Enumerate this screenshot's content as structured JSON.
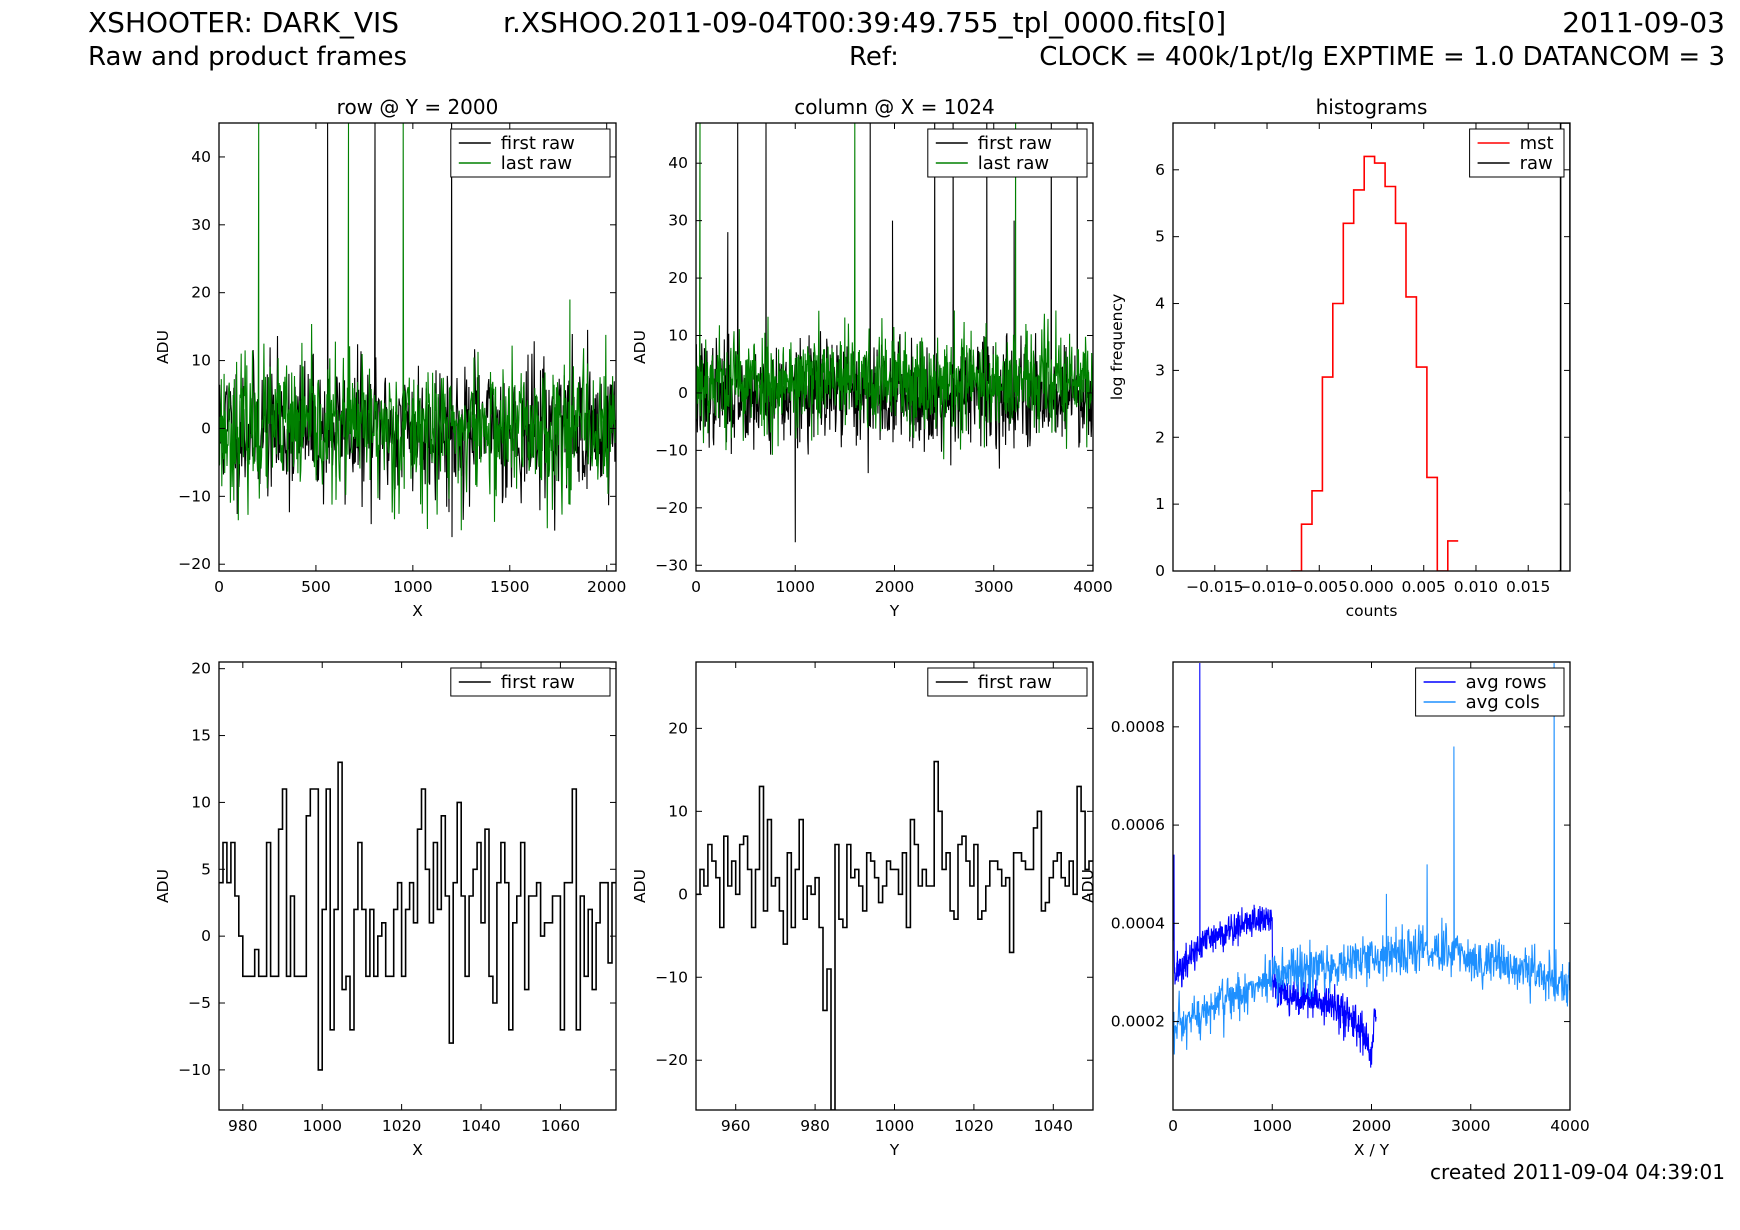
{
  "header": {
    "instrument": "XSHOOTER: DARK_VIS",
    "filename": "r.XSHOO.2011-09-04T00:39:49.755_tpl_0000.fits[0]",
    "date": "2011-09-03",
    "subtitle": "Raw and product frames",
    "ref": "Ref:",
    "params": "CLOCK = 400k/1pt/lg EXPTIME = 1.0 DATANCOM = 3"
  },
  "footer": {
    "created": "created 2011-09-04 04:39:01"
  },
  "colors": {
    "first_raw": "#000000",
    "last_raw": "#008000",
    "mst": "#ff0000",
    "raw": "#000000",
    "avg_rows": "#0000ff",
    "avg_cols": "#1e90ff"
  },
  "chart_data": [
    {
      "id": "row_full",
      "type": "line",
      "title": "row @ Y = 2000",
      "xlabel": "X",
      "ylabel": "ADU",
      "xlim": [
        0,
        2048
      ],
      "ylim": [
        -21,
        45
      ],
      "xticks": [
        0,
        500,
        1000,
        1500,
        2000
      ],
      "yticks": [
        -20,
        -10,
        0,
        10,
        20,
        30,
        40
      ],
      "legend": "top-right",
      "series": [
        {
          "name": "first raw",
          "color": "#000000",
          "noise": {
            "n": 700,
            "mean": 0,
            "sd": 5,
            "seed": 11
          },
          "spikes": [
            [
              560,
              45
            ],
            [
              805,
              45
            ],
            [
              1200,
              45
            ],
            [
              1202,
              -16
            ]
          ]
        },
        {
          "name": "last raw",
          "color": "#008000",
          "noise": {
            "n": 700,
            "mean": 0,
            "sd": 5,
            "seed": 23
          },
          "spikes": [
            [
              205,
              45
            ],
            [
              668,
              45
            ],
            [
              950,
              45
            ],
            [
              1810,
              19
            ],
            [
              1250,
              -15
            ]
          ]
        }
      ]
    },
    {
      "id": "col_full",
      "type": "line",
      "title": "column @ X = 1024",
      "xlabel": "Y",
      "ylabel": "ADU",
      "xlim": [
        0,
        4000
      ],
      "ylim": [
        -31,
        47
      ],
      "xticks": [
        0,
        1000,
        2000,
        3000,
        4000
      ],
      "yticks": [
        -30,
        -20,
        -10,
        0,
        10,
        20,
        30,
        40
      ],
      "legend": "top-right",
      "series": [
        {
          "name": "first raw",
          "color": "#000000",
          "noise": {
            "n": 900,
            "mean": 0,
            "sd": 4.5,
            "seed": 37
          },
          "spikes": [
            [
              420,
              47
            ],
            [
              705,
              47
            ],
            [
              1000,
              -26
            ],
            [
              1755,
              47
            ],
            [
              1980,
              30
            ],
            [
              2405,
              47
            ],
            [
              2590,
              47
            ],
            [
              2930,
              47
            ],
            [
              3205,
              30
            ],
            [
              3580,
              47
            ],
            [
              3840,
              47
            ],
            [
              320,
              28
            ]
          ]
        },
        {
          "name": "last raw",
          "color": "#008000",
          "noise": {
            "n": 900,
            "mean": 2,
            "sd": 4.5,
            "seed": 53
          },
          "spikes": [
            [
              40,
              47
            ],
            [
              1600,
              47
            ],
            [
              3220,
              47
            ]
          ]
        }
      ]
    },
    {
      "id": "histograms",
      "type": "line",
      "title": "histograms",
      "xlabel": "counts",
      "ylabel": "log frequency",
      "xlim": [
        -0.019,
        0.019
      ],
      "ylim": [
        0,
        6.7
      ],
      "xticks": [
        -0.015,
        -0.01,
        -0.005,
        0.0,
        0.005,
        0.01,
        0.015
      ],
      "xtick_labels": [
        "−0.015",
        "−0.010",
        "−0.005",
        "0.000",
        "0.005",
        "0.010",
        "0.015"
      ],
      "yticks": [
        0,
        1,
        2,
        3,
        4,
        5,
        6
      ],
      "legend": "top-right",
      "series": [
        {
          "name": "mst",
          "color": "#ff0000",
          "step": true,
          "x": [
            -0.0077,
            -0.0067,
            -0.0057,
            -0.0047,
            -0.0037,
            -0.0027,
            -0.0017,
            -0.0007,
            0.0003,
            0.0013,
            0.0023,
            0.0033,
            0.0043,
            0.0053,
            0.0063,
            0.0073
          ],
          "values": [
            0,
            0.7,
            1.2,
            2.9,
            4.0,
            5.2,
            5.7,
            6.2,
            6.1,
            5.75,
            5.2,
            4.1,
            3.05,
            1.4,
            0,
            0.45
          ]
        },
        {
          "name": "raw",
          "color": "#000000",
          "step": true,
          "x": [
            0.0179,
            0.0181,
            0.019
          ],
          "values": [
            0,
            6.7,
            1.2
          ]
        }
      ]
    },
    {
      "id": "row_zoom",
      "type": "line",
      "title": "",
      "xlabel": "X",
      "ylabel": "ADU",
      "xlim": [
        974,
        1074
      ],
      "ylim": [
        -13,
        20.5
      ],
      "xticks": [
        980,
        1000,
        1020,
        1040,
        1060
      ],
      "yticks": [
        -10,
        -5,
        0,
        5,
        10,
        15,
        20
      ],
      "legend": "top-right",
      "series": [
        {
          "name": "first raw",
          "color": "#000000",
          "step": true,
          "x_start": 974,
          "values": [
            4,
            7,
            4,
            7,
            3,
            0,
            -3,
            -3,
            -3,
            -1,
            -3,
            -3,
            7,
            -3,
            -3,
            8,
            11,
            -3,
            3,
            -3,
            -3,
            -3,
            9,
            11,
            11,
            -10,
            2,
            11,
            -7,
            2,
            13,
            -4,
            -3,
            -7,
            2,
            7,
            2,
            -3,
            2,
            -3,
            0,
            1,
            -3,
            -3,
            2,
            4,
            -3,
            2,
            4,
            1,
            8,
            11,
            5,
            1,
            7,
            2,
            9,
            3,
            -8,
            4,
            10,
            3,
            -3,
            3,
            5,
            7,
            1,
            8,
            -3,
            -5,
            4,
            7,
            4,
            -7,
            1,
            3,
            7,
            -4,
            3,
            3,
            4,
            0,
            1,
            1,
            3,
            3,
            -7,
            4,
            4,
            11,
            -7,
            3,
            -3,
            2,
            -4,
            1,
            4,
            4,
            -2,
            4
          ]
        }
      ]
    },
    {
      "id": "col_zoom",
      "type": "line",
      "title": "",
      "xlabel": "Y",
      "ylabel": "ADU",
      "xlim": [
        950,
        1050
      ],
      "ylim": [
        -26,
        28
      ],
      "xticks": [
        960,
        980,
        1000,
        1020,
        1040
      ],
      "yticks": [
        -20,
        -10,
        0,
        10,
        20
      ],
      "legend": "top-right",
      "series": [
        {
          "name": "first raw",
          "color": "#000000",
          "step": true,
          "x_start": 950,
          "values": [
            0,
            3,
            1,
            6,
            4,
            2,
            -4,
            7,
            1,
            4,
            0,
            6,
            7,
            3,
            -4,
            3,
            13,
            -2,
            9,
            1,
            2,
            -2,
            -6,
            5,
            -4,
            3,
            9,
            -3,
            1,
            0,
            2,
            -4,
            -14,
            -9,
            -26,
            6,
            -3,
            -4,
            6,
            2,
            3,
            1,
            -2,
            5,
            4,
            2,
            -1,
            1,
            4,
            3,
            3,
            0,
            5,
            -4,
            9,
            6,
            1,
            3,
            1,
            1,
            16,
            10,
            3,
            5,
            -2,
            -3,
            6,
            7,
            4,
            1,
            6,
            -3,
            -2,
            1,
            4,
            4,
            3,
            1,
            2,
            -7,
            5,
            5,
            4,
            3,
            3,
            8,
            10,
            -2,
            -1,
            2,
            4,
            5,
            2,
            1,
            4,
            0,
            13,
            10,
            3,
            4
          ]
        }
      ]
    },
    {
      "id": "avg_profiles",
      "type": "line",
      "title": "",
      "xlabel": "X / Y",
      "ylabel": "ADU",
      "xlim": [
        0,
        4000
      ],
      "ylim": [
        2e-05,
        0.000932
      ],
      "xticks": [
        0,
        1000,
        2000,
        3000,
        4000
      ],
      "yticks": [
        0.0002,
        0.0004,
        0.0006,
        0.0008
      ],
      "ytick_labels": [
        "0.0002",
        "0.0004",
        "0.0006",
        "0.0008"
      ],
      "legend": "top-right",
      "series": [
        {
          "name": "avg rows",
          "color": "#0000ff",
          "trend_x": [
            0,
            20,
            100,
            300,
            600,
            900,
            1000,
            1001,
            1200,
            1500,
            1800,
            1950,
            2000,
            2030,
            2048
          ],
          "trend_y": [
            0.00042,
            0.0003,
            0.00031,
            0.00036,
            0.00039,
            0.00041,
            0.00041,
            0.00028,
            0.00025,
            0.00024,
            0.00021,
            0.00016,
            0.00012,
            0.00021,
            0.0002
          ],
          "noise": {
            "n": 700,
            "sd": 1.8e-05,
            "seed": 71
          },
          "spikes": [
            [
              10,
              0.00054
            ],
            [
              270,
              0.00093
            ]
          ]
        },
        {
          "name": "avg cols",
          "color": "#1e90ff",
          "trend_x": [
            0,
            100,
            500,
            1000,
            1500,
            2000,
            2500,
            3000,
            3500,
            4000
          ],
          "trend_y": [
            0.00018,
            0.00019,
            0.00024,
            0.00029,
            0.00031,
            0.00033,
            0.00035,
            0.00033,
            0.00031,
            0.00027
          ],
          "noise": {
            "n": 900,
            "sd": 2.5e-05,
            "seed": 97
          },
          "spikes": [
            [
              2830,
              0.00076
            ],
            [
              3840,
              0.00093
            ],
            [
              2560,
              0.00052
            ],
            [
              2150,
              0.00046
            ]
          ]
        }
      ]
    }
  ]
}
